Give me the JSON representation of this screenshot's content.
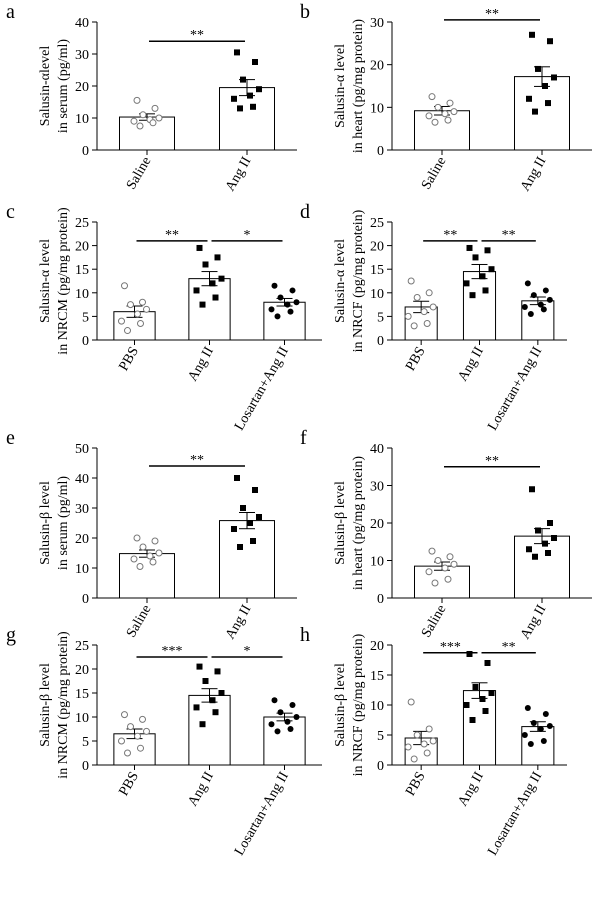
{
  "chart_data": [
    {
      "type": "bar",
      "panel": "a",
      "ylabel": [
        "Salusin-αlevel",
        "in serum (pg/ml)"
      ],
      "categories": [
        "Saline",
        "Ang II"
      ],
      "values": [
        10.3,
        19.5
      ],
      "errors": [
        1.0,
        2.5
      ],
      "points": [
        [
          15.5,
          13,
          11,
          10,
          9.5,
          9,
          8.5,
          7.5
        ],
        [
          30.5,
          27.5,
          22,
          19,
          17,
          16,
          13.5,
          13
        ]
      ],
      "point_styles": [
        "open-circle",
        "square"
      ],
      "ylim": [
        0,
        40
      ],
      "yticks": [
        0,
        10,
        20,
        30,
        40
      ],
      "comparisons": [
        {
          "from": 0,
          "to": 1,
          "y": 34,
          "label": "**"
        }
      ]
    },
    {
      "type": "bar",
      "panel": "b",
      "ylabel": [
        "Salusin-α level",
        "in heart (pg/mg protein)"
      ],
      "categories": [
        "Saline",
        "Ang II"
      ],
      "values": [
        9.2,
        17.2
      ],
      "errors": [
        1.0,
        2.3
      ],
      "points": [
        [
          12.5,
          11,
          10,
          9,
          8.5,
          8,
          7,
          6.5
        ],
        [
          27,
          25.5,
          19,
          17,
          15,
          12,
          11,
          9
        ]
      ],
      "point_styles": [
        "open-circle",
        "square"
      ],
      "ylim": [
        0,
        30
      ],
      "yticks": [
        0,
        10,
        20,
        30
      ],
      "comparisons": [
        {
          "from": 0,
          "to": 1,
          "y": 30.5,
          "label": "**"
        }
      ]
    },
    {
      "type": "bar",
      "panel": "c",
      "ylabel": [
        "Salusin-α level",
        "in NRCM (pg/mg protein)"
      ],
      "categories": [
        "PBS",
        "Ang II",
        "Losartan+Ang II"
      ],
      "values": [
        6,
        13,
        8
      ],
      "errors": [
        1.2,
        1.5,
        0.8
      ],
      "points": [
        [
          11.5,
          8,
          7.5,
          6.5,
          5.5,
          4,
          3.5,
          2
        ],
        [
          19.5,
          17.5,
          16,
          13,
          12,
          10.5,
          9,
          7.5
        ],
        [
          11.5,
          10.5,
          9,
          8,
          7.5,
          6.5,
          6,
          5
        ]
      ],
      "point_styles": [
        "open-circle",
        "square",
        "dot"
      ],
      "ylim": [
        0,
        25
      ],
      "yticks": [
        0,
        5,
        10,
        15,
        20,
        25
      ],
      "comparisons": [
        {
          "from": 0,
          "to": 1,
          "y": 21,
          "label": "**"
        },
        {
          "from": 1,
          "to": 2,
          "y": 21,
          "label": "*"
        }
      ]
    },
    {
      "type": "bar",
      "panel": "d",
      "ylabel": [
        "Salusin-α level",
        "in NRCF (pg/mg protein)"
      ],
      "categories": [
        "PBS",
        "Ang II",
        "Losartan+Ang II"
      ],
      "values": [
        7,
        14.5,
        8.3
      ],
      "errors": [
        1.2,
        1.5,
        0.8
      ],
      "points": [
        [
          12.5,
          10,
          9,
          7,
          6,
          5,
          3.5,
          3
        ],
        [
          19.5,
          19,
          17.5,
          15,
          13.5,
          12,
          10.5,
          9.5
        ],
        [
          12,
          10.5,
          9.5,
          8.5,
          7.5,
          7,
          6.5,
          5.5
        ]
      ],
      "point_styles": [
        "open-circle",
        "square",
        "dot"
      ],
      "ylim": [
        0,
        25
      ],
      "yticks": [
        0,
        5,
        10,
        15,
        20,
        25
      ],
      "comparisons": [
        {
          "from": 0,
          "to": 1,
          "y": 21,
          "label": "**"
        },
        {
          "from": 1,
          "to": 2,
          "y": 21,
          "label": "**"
        }
      ]
    },
    {
      "type": "bar",
      "panel": "e",
      "ylabel": [
        "Salusin-β level",
        "in serum (pg/ml)"
      ],
      "categories": [
        "Saline",
        "Ang II"
      ],
      "values": [
        14.8,
        25.8
      ],
      "errors": [
        1.2,
        2.7
      ],
      "points": [
        [
          20,
          19,
          17,
          15,
          14,
          13,
          12,
          10.5
        ],
        [
          40,
          36,
          30,
          27,
          25,
          23,
          19,
          17
        ]
      ],
      "point_styles": [
        "open-circle",
        "square"
      ],
      "ylim": [
        0,
        50
      ],
      "yticks": [
        0,
        10,
        20,
        30,
        40,
        50
      ],
      "comparisons": [
        {
          "from": 0,
          "to": 1,
          "y": 44,
          "label": "**"
        }
      ]
    },
    {
      "type": "bar",
      "panel": "f",
      "ylabel": [
        "Salusin-β level",
        "in heart (pg/mg protein)"
      ],
      "categories": [
        "Saline",
        "Ang II"
      ],
      "values": [
        8.5,
        16.5
      ],
      "errors": [
        1.1,
        2.0
      ],
      "points": [
        [
          12.5,
          11,
          10,
          9,
          8,
          7,
          5,
          4
        ],
        [
          29,
          20,
          18,
          16,
          14.5,
          13,
          12,
          11
        ]
      ],
      "point_styles": [
        "open-circle",
        "square"
      ],
      "ylim": [
        0,
        40
      ],
      "yticks": [
        0,
        10,
        20,
        30,
        40
      ],
      "comparisons": [
        {
          "from": 0,
          "to": 1,
          "y": 35,
          "label": "**"
        }
      ]
    },
    {
      "type": "bar",
      "panel": "g",
      "ylabel": [
        "Salusin-β level",
        "in NRCM (pg/mg protein)"
      ],
      "categories": [
        "PBS",
        "Ang II",
        "Losartan+Ang II"
      ],
      "values": [
        6.5,
        14.5,
        10
      ],
      "errors": [
        1.0,
        1.4,
        0.8
      ],
      "points": [
        [
          10.5,
          9.5,
          8,
          7,
          6,
          5,
          3.5,
          2.5
        ],
        [
          20.5,
          19.5,
          17.5,
          15,
          13.5,
          12,
          11,
          8.5
        ],
        [
          13.5,
          12.5,
          11,
          10,
          9,
          8.5,
          7.5,
          7
        ]
      ],
      "point_styles": [
        "open-circle",
        "square",
        "dot"
      ],
      "ylim": [
        0,
        25
      ],
      "yticks": [
        0,
        5,
        10,
        15,
        20,
        25
      ],
      "comparisons": [
        {
          "from": 0,
          "to": 1,
          "y": 22.5,
          "label": "***"
        },
        {
          "from": 1,
          "to": 2,
          "y": 22.5,
          "label": "*"
        }
      ]
    },
    {
      "type": "bar",
      "panel": "h",
      "ylabel": [
        "Salusin-β level",
        "in NRCF (pg/mg protein)"
      ],
      "categories": [
        "PBS",
        "Ang II",
        "Losartan+Ang II"
      ],
      "values": [
        4.5,
        12.4,
        6.4
      ],
      "errors": [
        1.1,
        1.3,
        0.8
      ],
      "points": [
        [
          10.5,
          6,
          5,
          4,
          3.5,
          3,
          2,
          1
        ],
        [
          18.5,
          17,
          13,
          12,
          11,
          10,
          9,
          7.5
        ],
        [
          9.5,
          8.5,
          7,
          6.5,
          6,
          5,
          4,
          3.5
        ]
      ],
      "point_styles": [
        "open-circle",
        "square",
        "dot"
      ],
      "ylim": [
        0,
        20
      ],
      "yticks": [
        0,
        5,
        10,
        15,
        20
      ],
      "comparisons": [
        {
          "from": 0,
          "to": 1,
          "y": 18.7,
          "label": "***"
        },
        {
          "from": 1,
          "to": 2,
          "y": 18.7,
          "label": "**"
        }
      ]
    }
  ]
}
